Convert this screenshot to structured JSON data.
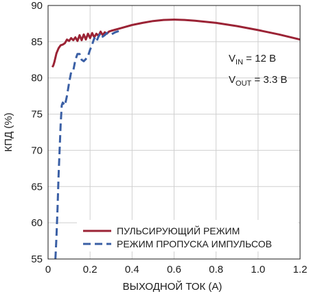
{
  "chart_data": {
    "type": "line",
    "xlabel": "ВЫХОДНОЙ ТОК (A)",
    "ylabel": "КПД (%)",
    "xlim": [
      0,
      1.2
    ],
    "ylim": [
      55,
      90
    ],
    "xticks": [
      "0",
      "0.2",
      "0.4",
      "0.6",
      "0.8",
      "1.0",
      "1.2"
    ],
    "yticks": [
      "55",
      "60",
      "65",
      "70",
      "75",
      "80",
      "85",
      "90"
    ],
    "grid": true,
    "legend_position": "bottom-center",
    "annotations": {
      "vin_main": "V",
      "vin_sub": "IN",
      "vin_rest": " = 12 В",
      "vout_main": "V",
      "vout_sub": "OUT",
      "vout_rest": " = 3.3 В"
    },
    "series": [
      {
        "name": "ПУЛЬСИРУЮЩИЙ РЕЖИМ",
        "color": "#9b2335",
        "style": "solid",
        "x": [
          0.02,
          0.025,
          0.03,
          0.04,
          0.05,
          0.06,
          0.07,
          0.08,
          0.09,
          0.1,
          0.11,
          0.12,
          0.13,
          0.14,
          0.15,
          0.16,
          0.17,
          0.18,
          0.19,
          0.2,
          0.21,
          0.22,
          0.23,
          0.24,
          0.25,
          0.26,
          0.27,
          0.28,
          0.29,
          0.3,
          0.35,
          0.4,
          0.45,
          0.5,
          0.55,
          0.6,
          0.65,
          0.7,
          0.8,
          0.9,
          1.0,
          1.1,
          1.2
        ],
        "y": [
          81.5,
          81.7,
          82.2,
          83.4,
          84.1,
          84.5,
          84.6,
          84.8,
          85.3,
          85.1,
          85.5,
          85.2,
          85.6,
          85.1,
          85.9,
          85.2,
          86.0,
          85.3,
          86.1,
          85.5,
          86.2,
          85.6,
          86.1,
          85.8,
          86.4,
          85.9,
          86.3,
          86.1,
          86.4,
          86.5,
          86.9,
          87.3,
          87.6,
          87.85,
          88.0,
          88.05,
          88.0,
          87.9,
          87.6,
          87.15,
          86.6,
          86.0,
          85.3
        ]
      },
      {
        "name": "РЕЖИМ ПРОПУСКА ИМПУЛЬСОВ",
        "color": "#3a5fa5",
        "style": "dashed",
        "x": [
          0.035,
          0.04,
          0.045,
          0.05,
          0.055,
          0.06,
          0.065,
          0.07,
          0.08,
          0.09,
          0.1,
          0.11,
          0.12,
          0.13,
          0.14,
          0.15,
          0.16,
          0.17,
          0.18,
          0.19,
          0.2,
          0.21,
          0.22,
          0.23,
          0.24,
          0.25,
          0.26,
          0.27,
          0.28,
          0.3,
          0.32,
          0.34
        ],
        "y": [
          55.0,
          58.0,
          62.0,
          66.5,
          70.0,
          73.5,
          76.2,
          76.6,
          76.2,
          77.5,
          79.3,
          80.8,
          81.0,
          82.5,
          83.3,
          83.3,
          82.5,
          82.3,
          82.6,
          83.0,
          83.9,
          84.6,
          85.5,
          85.0,
          85.7,
          86.2,
          85.7,
          85.9,
          86.2,
          86.0,
          86.3,
          86.5
        ]
      }
    ]
  }
}
